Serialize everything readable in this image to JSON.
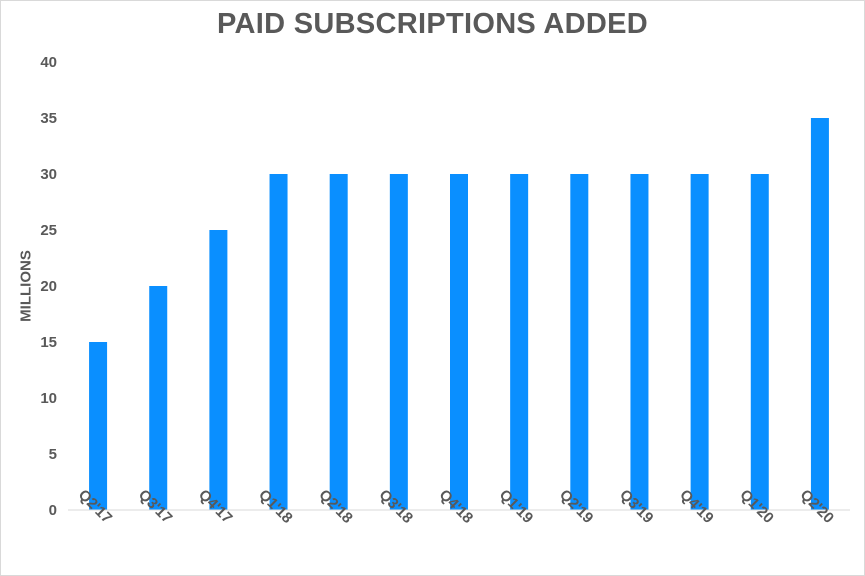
{
  "chart_data": {
    "type": "bar",
    "title": "PAID SUBSCRIPTIONS ADDED",
    "ylabel": "MILLIONS",
    "xlabel": "",
    "categories": [
      "Q2'17",
      "Q3'17",
      "Q4'17",
      "Q1'18",
      "Q2'18",
      "Q3'18",
      "Q4'18",
      "Q1'19",
      "Q2'19",
      "Q3'19",
      "Q4'19",
      "Q1'20",
      "Q2'20"
    ],
    "values": [
      15,
      20,
      25,
      30,
      30,
      30,
      30,
      30,
      30,
      30,
      30,
      30,
      35
    ],
    "ylim": [
      0,
      40
    ],
    "yticks": [
      0,
      5,
      10,
      15,
      20,
      25,
      30,
      35,
      40
    ],
    "grid": false,
    "bar_color": "#0A8FFF",
    "text_color": "#595959",
    "axis_color": "#d9d9d9"
  }
}
